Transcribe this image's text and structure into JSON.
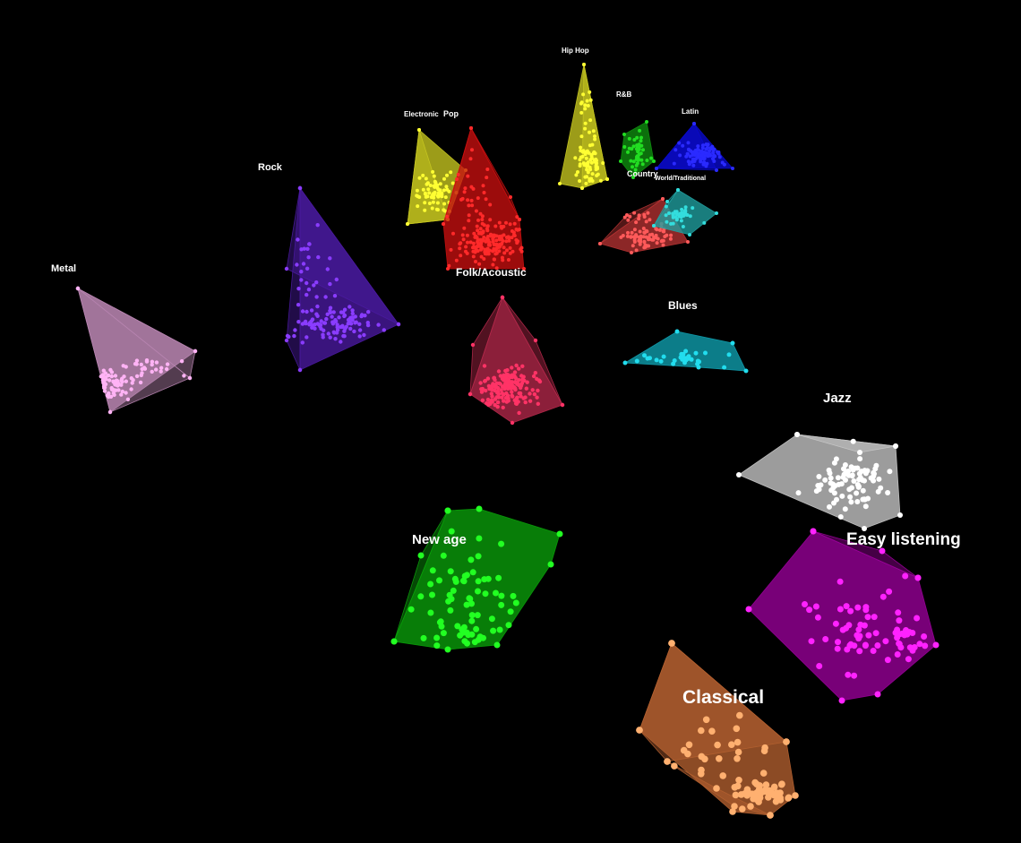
{
  "view": {
    "background": "#000000"
  },
  "clusters": [
    {
      "id": "metal",
      "label": "Metal",
      "color": "#ffb3f5",
      "hull": "#b784b0"
    },
    {
      "id": "rock",
      "label": "Rock",
      "color": "#8a3cff",
      "hull": "#4a1aa0"
    },
    {
      "id": "electronic",
      "label": "Electronic",
      "color": "#ffff33",
      "hull": "#c8c820"
    },
    {
      "id": "pop",
      "label": "Pop",
      "color": "#ff2a2a",
      "hull": "#c81010"
    },
    {
      "id": "hip-hop",
      "label": "Hip Hop",
      "color": "#ffff33",
      "hull": "#c8c820"
    },
    {
      "id": "rnb",
      "label": "R&B",
      "color": "#22dd22",
      "hull": "#109010"
    },
    {
      "id": "latin",
      "label": "Latin",
      "color": "#2a2aff",
      "hull": "#0a0ad0"
    },
    {
      "id": "country",
      "label": "Country",
      "color": "#ff5a5a",
      "hull": "#b43232"
    },
    {
      "id": "world",
      "label": "World/Traditional",
      "color": "#33dddd",
      "hull": "#20a0a0"
    },
    {
      "id": "folk",
      "label": "Folk/Acoustic",
      "color": "#ff3366",
      "hull": "#b4284a"
    },
    {
      "id": "blues",
      "label": "Blues",
      "color": "#22ddee",
      "hull": "#10a0b0"
    },
    {
      "id": "jazz",
      "label": "Jazz",
      "color": "#ffffff",
      "hull": "#c8c8c8"
    },
    {
      "id": "easy",
      "label": "Easy listening",
      "color": "#ff22ff",
      "hull": "#9a009a"
    },
    {
      "id": "new-age",
      "label": "New age",
      "color": "#22ff22",
      "hull": "#0aa00a"
    },
    {
      "id": "classical",
      "label": "Classical",
      "color": "#ffb070",
      "hull": "#b46030"
    }
  ]
}
